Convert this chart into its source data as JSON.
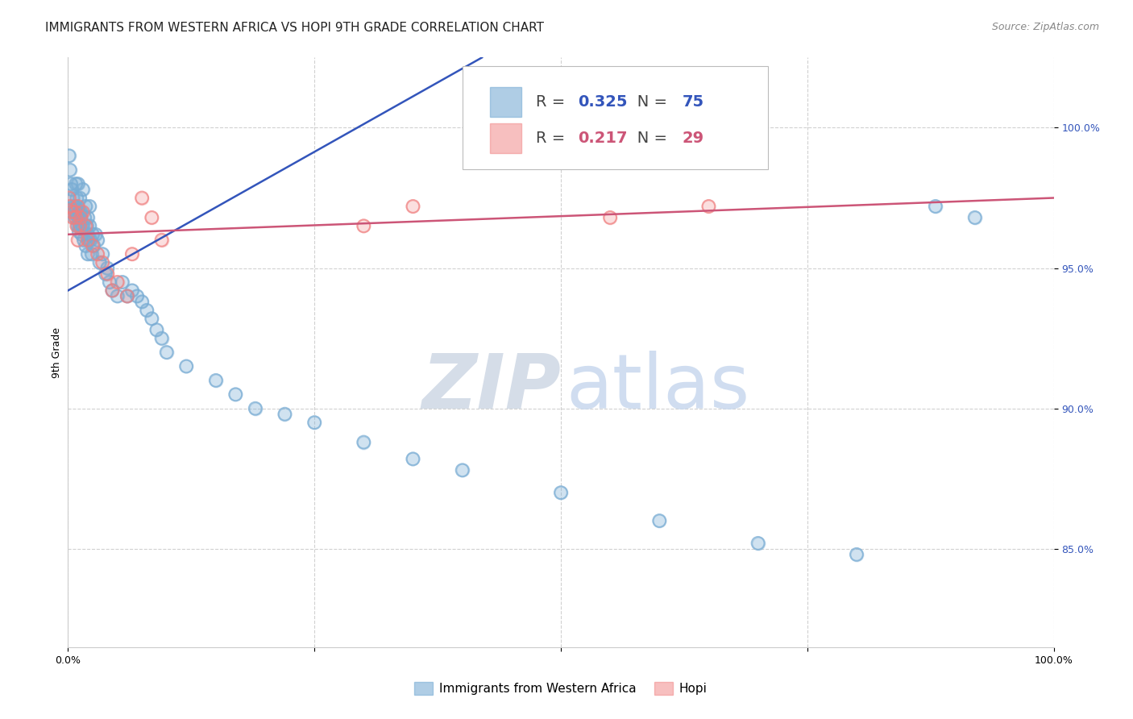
{
  "title": "IMMIGRANTS FROM WESTERN AFRICA VS HOPI 9TH GRADE CORRELATION CHART",
  "source": "Source: ZipAtlas.com",
  "ylabel": "9th Grade",
  "ytick_labels": [
    "85.0%",
    "90.0%",
    "95.0%",
    "100.0%"
  ],
  "ytick_values": [
    0.85,
    0.9,
    0.95,
    1.0
  ],
  "xlim": [
    0.0,
    1.0
  ],
  "ylim": [
    0.815,
    1.025
  ],
  "legend_blue_r": "0.325",
  "legend_blue_n": "75",
  "legend_pink_r": "0.217",
  "legend_pink_n": "29",
  "blue_color": "#7aadd4",
  "pink_color": "#f08080",
  "blue_line_color": "#3355bb",
  "pink_line_color": "#cc5577",
  "blue_scatter_x": [
    0.001,
    0.002,
    0.003,
    0.004,
    0.005,
    0.006,
    0.007,
    0.007,
    0.008,
    0.008,
    0.009,
    0.009,
    0.01,
    0.01,
    0.01,
    0.011,
    0.011,
    0.012,
    0.012,
    0.012,
    0.013,
    0.013,
    0.014,
    0.014,
    0.015,
    0.015,
    0.016,
    0.017,
    0.018,
    0.018,
    0.019,
    0.02,
    0.02,
    0.02,
    0.021,
    0.022,
    0.022,
    0.023,
    0.024,
    0.025,
    0.026,
    0.028,
    0.03,
    0.032,
    0.035,
    0.038,
    0.04,
    0.042,
    0.045,
    0.05,
    0.055,
    0.06,
    0.065,
    0.07,
    0.075,
    0.08,
    0.085,
    0.09,
    0.095,
    0.1,
    0.12,
    0.15,
    0.17,
    0.19,
    0.22,
    0.25,
    0.3,
    0.35,
    0.4,
    0.5,
    0.6,
    0.7,
    0.8,
    0.88,
    0.92
  ],
  "blue_scatter_y": [
    0.99,
    0.985,
    0.98,
    0.978,
    0.975,
    0.972,
    0.97,
    0.968,
    0.98,
    0.972,
    0.969,
    0.975,
    0.98,
    0.968,
    0.965,
    0.97,
    0.963,
    0.975,
    0.969,
    0.965,
    0.97,
    0.968,
    0.965,
    0.962,
    0.978,
    0.965,
    0.96,
    0.968,
    0.972,
    0.958,
    0.965,
    0.962,
    0.968,
    0.955,
    0.96,
    0.965,
    0.972,
    0.96,
    0.955,
    0.962,
    0.958,
    0.962,
    0.96,
    0.952,
    0.955,
    0.948,
    0.95,
    0.945,
    0.942,
    0.94,
    0.945,
    0.94,
    0.942,
    0.94,
    0.938,
    0.935,
    0.932,
    0.928,
    0.925,
    0.92,
    0.915,
    0.91,
    0.905,
    0.9,
    0.898,
    0.895,
    0.888,
    0.882,
    0.878,
    0.87,
    0.86,
    0.852,
    0.848,
    0.972,
    0.968
  ],
  "pink_scatter_x": [
    0.001,
    0.002,
    0.004,
    0.005,
    0.007,
    0.008,
    0.009,
    0.01,
    0.01,
    0.012,
    0.013,
    0.015,
    0.018,
    0.02,
    0.025,
    0.03,
    0.035,
    0.04,
    0.045,
    0.05,
    0.06,
    0.065,
    0.075,
    0.085,
    0.095,
    0.3,
    0.35,
    0.55,
    0.65
  ],
  "pink_scatter_y": [
    0.975,
    0.972,
    0.97,
    0.968,
    0.97,
    0.968,
    0.965,
    0.972,
    0.96,
    0.965,
    0.968,
    0.97,
    0.965,
    0.96,
    0.958,
    0.955,
    0.952,
    0.948,
    0.942,
    0.945,
    0.94,
    0.955,
    0.975,
    0.968,
    0.96,
    0.965,
    0.972,
    0.968,
    0.972
  ],
  "blue_line_x0": 0.0,
  "blue_line_x1": 0.42,
  "blue_line_y0": 0.942,
  "blue_line_y1": 1.025,
  "pink_line_x0": 0.0,
  "pink_line_x1": 1.0,
  "pink_line_y0": 0.962,
  "pink_line_y1": 0.975,
  "grid_color": "#cccccc",
  "background_color": "#ffffff",
  "title_fontsize": 11,
  "axis_label_fontsize": 9,
  "tick_fontsize": 9,
  "legend_fontsize": 13,
  "source_fontsize": 9
}
